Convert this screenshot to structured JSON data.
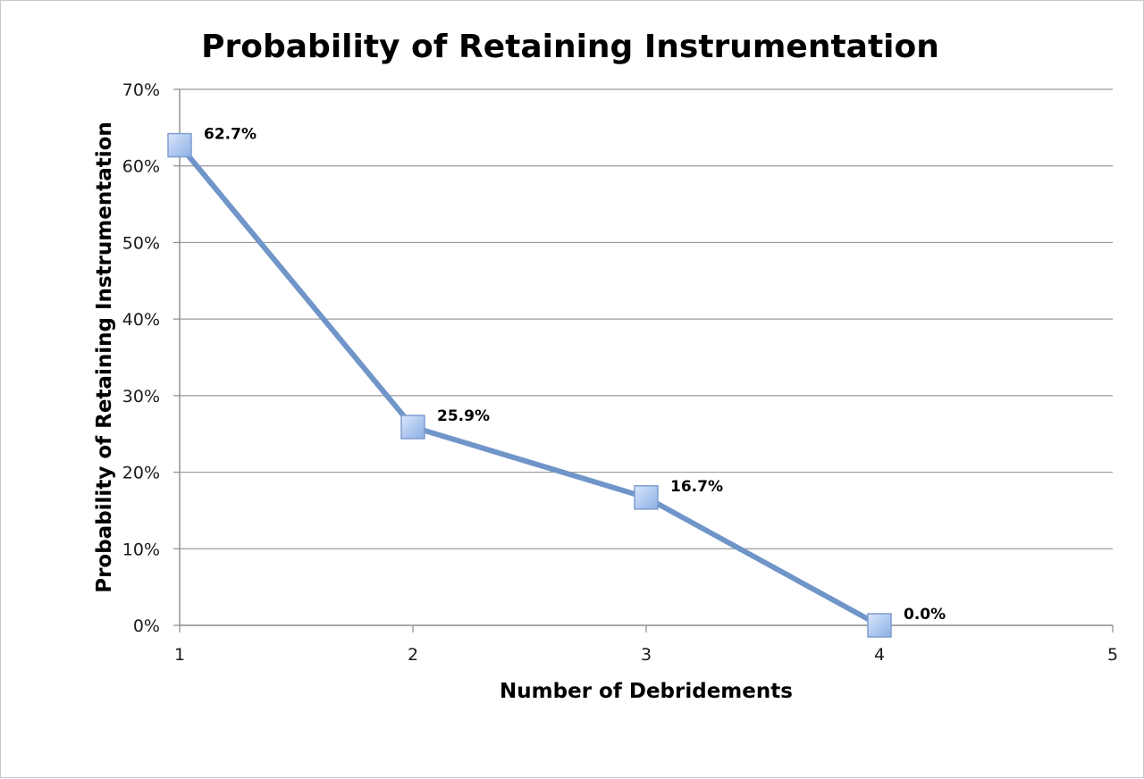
{
  "chart_data": {
    "type": "line",
    "title": "Probability of Retaining Instrumentation",
    "xlabel": "Number of Debridements",
    "ylabel": "Probability of Retaining Instrumentation",
    "x": [
      1,
      2,
      3,
      4
    ],
    "values": [
      62.7,
      25.9,
      16.7,
      0.0
    ],
    "data_labels": [
      "62.7%",
      "25.9%",
      "16.7%",
      "0.0%"
    ],
    "xlim": [
      1,
      5
    ],
    "ylim": [
      0,
      70
    ],
    "x_ticks": [
      "1",
      "2",
      "3",
      "4",
      "5"
    ],
    "y_ticks": [
      "0%",
      "10%",
      "20%",
      "30%",
      "40%",
      "50%",
      "60%",
      "70%"
    ],
    "grid": "horizontal",
    "legend": "none",
    "colors": {
      "line": "#6f95c9",
      "marker_fill": "#a9c4ee",
      "marker_stroke": "#7e9dcf",
      "gridline": "#9a9a9a",
      "axis": "#8c8c8c"
    }
  }
}
